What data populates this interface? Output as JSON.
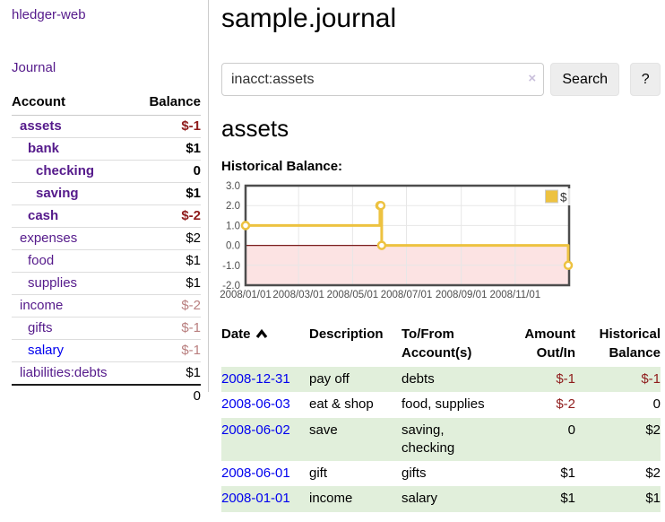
{
  "sidebar": {
    "brand": "hledger-web",
    "nav_journal": "Journal",
    "accounts_table": {
      "account_header": "Account",
      "balance_header": "Balance",
      "rows": [
        {
          "account": "assets",
          "balance": "$-1",
          "indent": 0,
          "bold": true,
          "negative": true,
          "unvisited": false
        },
        {
          "account": "bank",
          "balance": "$1",
          "indent": 1,
          "bold": true,
          "negative": false,
          "unvisited": false
        },
        {
          "account": "checking",
          "balance": "0",
          "indent": 2,
          "bold": true,
          "negative": false,
          "unvisited": false
        },
        {
          "account": "saving",
          "balance": "$1",
          "indent": 2,
          "bold": true,
          "negative": false,
          "unvisited": false
        },
        {
          "account": "cash",
          "balance": "$-2",
          "indent": 1,
          "bold": true,
          "negative": true,
          "unvisited": false
        },
        {
          "account": "expenses",
          "balance": "$2",
          "indent": 0,
          "bold": false,
          "negative": false,
          "unvisited": false
        },
        {
          "account": "food",
          "balance": "$1",
          "indent": 1,
          "bold": false,
          "negative": false,
          "unvisited": false
        },
        {
          "account": "supplies",
          "balance": "$1",
          "indent": 1,
          "bold": false,
          "negative": false,
          "unvisited": false
        },
        {
          "account": "income",
          "balance": "$-2",
          "indent": 0,
          "bold": false,
          "negative": true,
          "unvisited": false
        },
        {
          "account": "gifts",
          "balance": "$-1",
          "indent": 1,
          "bold": false,
          "negative": true,
          "unvisited": false
        },
        {
          "account": "salary",
          "balance": "$-1",
          "indent": 1,
          "bold": false,
          "negative": true,
          "unvisited": true
        },
        {
          "account": "liabilities:debts",
          "balance": "$1",
          "indent": 0,
          "bold": false,
          "negative": false,
          "unvisited": false
        }
      ],
      "total": "0"
    }
  },
  "main": {
    "title": "sample.journal",
    "search": {
      "value": "inacct:assets",
      "clear_icon": "×",
      "search_button": "Search",
      "help_button": "?"
    },
    "account_heading": "assets",
    "chart_title": "Historical Balance:"
  },
  "chart_data": {
    "type": "line",
    "step": true,
    "title": "Historical Balance",
    "series": [
      {
        "name": "$",
        "color": "#edc240",
        "points": [
          {
            "date": "2008-01-01",
            "value": 1
          },
          {
            "date": "2008-06-01",
            "value": 2
          },
          {
            "date": "2008-06-02",
            "value": 2
          },
          {
            "date": "2008-06-03",
            "value": 0
          },
          {
            "date": "2008-12-31",
            "value": -1
          }
        ]
      }
    ],
    "xlim": [
      "2008-01-01",
      "2009-01-01"
    ],
    "ylim": [
      -2,
      3
    ],
    "x_ticks": [
      {
        "label": "2008/01/01",
        "date": "2008-01-01"
      },
      {
        "label": "2008/03/01",
        "date": "2008-03-01"
      },
      {
        "label": "2008/05/01",
        "date": "2008-05-01"
      },
      {
        "label": "2008/07/01",
        "date": "2008-07-01"
      },
      {
        "label": "2008/09/01",
        "date": "2008-09-01"
      },
      {
        "label": "2008/11/01",
        "date": "2008-11-01"
      }
    ],
    "y_ticks": [
      {
        "label": "3.0",
        "value": 3
      },
      {
        "label": "2.0",
        "value": 2
      },
      {
        "label": "1.0",
        "value": 1
      },
      {
        "label": "0.0",
        "value": 0
      },
      {
        "label": "-1.0",
        "value": -1
      },
      {
        "label": "-2.0",
        "value": -2
      }
    ],
    "legend": {
      "label": "$",
      "position": "top-right"
    },
    "grid": true,
    "grid_color": "#e7e7e7",
    "border_color": "#4d4d4d",
    "tick_label_color": "#4f4f4f",
    "negative_region_color": "#fce3e3",
    "zero_line_color": "#7a1d1d"
  },
  "register_table": {
    "headers": {
      "date": "Date",
      "description": "Description",
      "accounts": "To/From Account(s)",
      "amount": "Amount Out/In",
      "balance": "Historical Balance"
    },
    "sort": "ascending",
    "rows": [
      {
        "date": "2008-12-31",
        "description": "pay off",
        "accounts": "debts",
        "amount": "$-1",
        "amount_negative": true,
        "balance": "$-1",
        "balance_negative": true
      },
      {
        "date": "2008-06-03",
        "description": "eat & shop",
        "accounts": "food, supplies",
        "amount": "$-2",
        "amount_negative": true,
        "balance": "0",
        "balance_negative": false
      },
      {
        "date": "2008-06-02",
        "description": "save",
        "accounts": "saving, checking",
        "amount": "0",
        "amount_negative": false,
        "balance": "$2",
        "balance_negative": false
      },
      {
        "date": "2008-06-01",
        "description": "gift",
        "accounts": "gifts",
        "amount": "$1",
        "amount_negative": false,
        "balance": "$2",
        "balance_negative": false
      },
      {
        "date": "2008-01-01",
        "description": "income",
        "accounts": "salary",
        "amount": "$1",
        "amount_negative": false,
        "balance": "$1",
        "balance_negative": false
      }
    ]
  }
}
